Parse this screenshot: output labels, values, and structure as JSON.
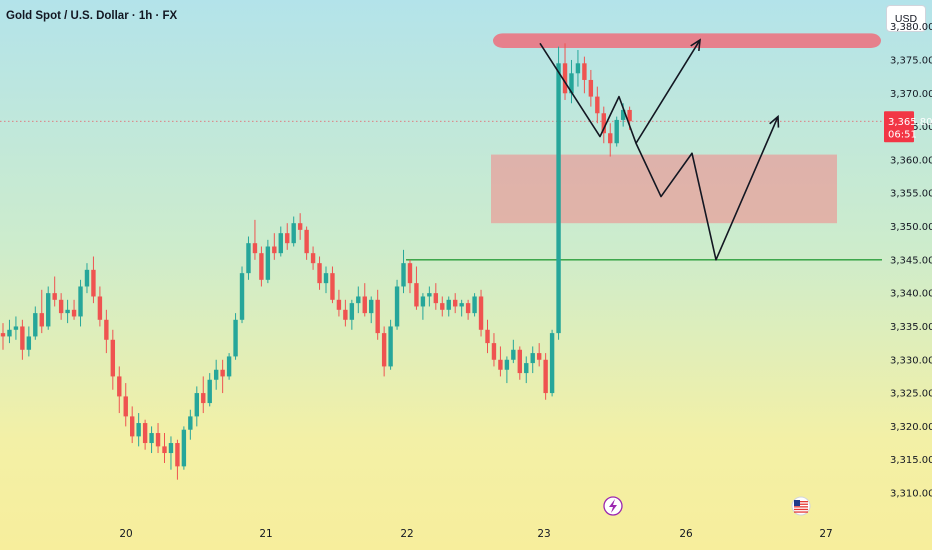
{
  "header": {
    "title": "Gold Spot / U.S. Dollar · 1h · FX",
    "currency_label": "USD"
  },
  "colors": {
    "up": "#26a69a",
    "down": "#ef5350",
    "supply_zone": "#e87a87",
    "demand_zone": "#f08e8e",
    "support_line": "#2a9d3a",
    "projection": "#131722",
    "price_badge": "#f23645"
  },
  "icons": [
    "lightning-icon",
    "us-flag-icon"
  ],
  "chart_data": {
    "type": "candlestick",
    "symbol": "Gold Spot / U.S. Dollar",
    "interval": "1h",
    "currency": "USD",
    "y_ticks": [
      "3,310.00",
      "3,315.00",
      "3,320.00",
      "3,325.00",
      "3,330.00",
      "3,335.00",
      "3,340.00",
      "3,345.00",
      "3,350.00",
      "3,355.00",
      "3,360.00",
      "3,365.00",
      "3,370.00",
      "3,375.00",
      "3,380.00"
    ],
    "x_ticks": [
      "20",
      "21",
      "22",
      "23",
      "26",
      "27"
    ],
    "ylim": [
      3308.5,
      3382.5
    ],
    "current_price": {
      "label": "3,365.80",
      "value": 3365.8,
      "countdown": "06:51"
    },
    "candles": [
      [
        3334.0,
        3335.5,
        3331.5,
        3333.5
      ],
      [
        3333.5,
        3336.0,
        3332.5,
        3334.5
      ],
      [
        3334.5,
        3336.5,
        3333.0,
        3335.0
      ],
      [
        3335.0,
        3336.0,
        3330.0,
        3331.5
      ],
      [
        3331.5,
        3335.0,
        3330.5,
        3333.5
      ],
      [
        3333.5,
        3338.0,
        3333.0,
        3337.0
      ],
      [
        3337.0,
        3340.5,
        3334.0,
        3335.0
      ],
      [
        3335.0,
        3341.0,
        3334.5,
        3340.0
      ],
      [
        3340.0,
        3342.5,
        3338.0,
        3339.0
      ],
      [
        3339.0,
        3340.0,
        3336.0,
        3337.0
      ],
      [
        3337.0,
        3339.0,
        3335.5,
        3337.5
      ],
      [
        3337.5,
        3339.0,
        3336.0,
        3336.5
      ],
      [
        3336.5,
        3342.0,
        3335.0,
        3341.0
      ],
      [
        3341.0,
        3344.5,
        3340.0,
        3343.5
      ],
      [
        3343.5,
        3345.5,
        3338.5,
        3339.5
      ],
      [
        3339.5,
        3341.0,
        3335.0,
        3336.0
      ],
      [
        3336.0,
        3337.5,
        3331.0,
        3333.0
      ],
      [
        3333.0,
        3334.5,
        3325.5,
        3327.5
      ],
      [
        3327.5,
        3329.0,
        3322.0,
        3324.5
      ],
      [
        3324.5,
        3326.5,
        3320.0,
        3321.5
      ],
      [
        3321.5,
        3323.0,
        3317.5,
        3318.5
      ],
      [
        3318.5,
        3322.0,
        3317.0,
        3320.5
      ],
      [
        3320.5,
        3321.0,
        3316.5,
        3317.5
      ],
      [
        3317.5,
        3320.0,
        3316.0,
        3319.0
      ],
      [
        3319.0,
        3320.5,
        3316.0,
        3317.0
      ],
      [
        3317.0,
        3319.0,
        3314.5,
        3316.0
      ],
      [
        3316.0,
        3318.5,
        3313.5,
        3317.5
      ],
      [
        3317.5,
        3318.0,
        3312.0,
        3314.0
      ],
      [
        3314.0,
        3320.0,
        3313.5,
        3319.5
      ],
      [
        3319.5,
        3322.5,
        3318.0,
        3321.5
      ],
      [
        3321.5,
        3326.0,
        3320.0,
        3325.0
      ],
      [
        3325.0,
        3327.5,
        3322.0,
        3323.5
      ],
      [
        3323.5,
        3328.0,
        3323.0,
        3327.0
      ],
      [
        3327.0,
        3330.0,
        3325.5,
        3328.5
      ],
      [
        3328.5,
        3330.0,
        3325.0,
        3327.5
      ],
      [
        3327.5,
        3331.0,
        3327.0,
        3330.5
      ],
      [
        3330.5,
        3337.0,
        3330.0,
        3336.0
      ],
      [
        3336.0,
        3344.0,
        3335.5,
        3343.0
      ],
      [
        3343.0,
        3348.5,
        3342.0,
        3347.5
      ],
      [
        3347.5,
        3351.0,
        3345.0,
        3346.0
      ],
      [
        3346.0,
        3347.0,
        3341.0,
        3342.0
      ],
      [
        3342.0,
        3348.0,
        3341.5,
        3347.0
      ],
      [
        3347.0,
        3349.0,
        3345.0,
        3346.0
      ],
      [
        3346.0,
        3350.0,
        3345.5,
        3349.0
      ],
      [
        3349.0,
        3350.5,
        3346.5,
        3347.5
      ],
      [
        3347.5,
        3351.5,
        3347.0,
        3350.5
      ],
      [
        3350.5,
        3352.0,
        3348.0,
        3349.5
      ],
      [
        3349.5,
        3350.0,
        3345.0,
        3346.0
      ],
      [
        3346.0,
        3347.0,
        3343.5,
        3344.5
      ],
      [
        3344.5,
        3345.5,
        3340.5,
        3341.5
      ],
      [
        3341.5,
        3344.0,
        3340.0,
        3343.0
      ],
      [
        3343.0,
        3344.0,
        3338.5,
        3339.0
      ],
      [
        3339.0,
        3340.5,
        3336.5,
        3337.5
      ],
      [
        3337.5,
        3339.0,
        3335.0,
        3336.0
      ],
      [
        3336.0,
        3339.0,
        3334.5,
        3338.5
      ],
      [
        3338.5,
        3341.0,
        3337.0,
        3339.5
      ],
      [
        3339.5,
        3341.5,
        3336.5,
        3337.0
      ],
      [
        3337.0,
        3339.5,
        3335.5,
        3339.0
      ],
      [
        3339.0,
        3340.5,
        3333.0,
        3334.0
      ],
      [
        3334.0,
        3335.0,
        3327.5,
        3329.0
      ],
      [
        3329.0,
        3336.0,
        3328.5,
        3335.0
      ],
      [
        3335.0,
        3342.0,
        3334.5,
        3341.0
      ],
      [
        3341.0,
        3346.5,
        3340.0,
        3344.5
      ],
      [
        3344.5,
        3345.0,
        3340.0,
        3341.5
      ],
      [
        3341.5,
        3344.0,
        3337.5,
        3338.0
      ],
      [
        3338.0,
        3340.0,
        3336.0,
        3339.5
      ],
      [
        3339.5,
        3341.0,
        3338.0,
        3340.0
      ],
      [
        3340.0,
        3341.5,
        3337.5,
        3338.5
      ],
      [
        3338.5,
        3339.5,
        3336.5,
        3337.5
      ],
      [
        3337.5,
        3339.5,
        3336.5,
        3339.0
      ],
      [
        3339.0,
        3340.0,
        3337.0,
        3338.0
      ],
      [
        3338.0,
        3339.0,
        3336.5,
        3338.5
      ],
      [
        3338.5,
        3339.0,
        3336.0,
        3337.0
      ],
      [
        3337.0,
        3340.0,
        3336.5,
        3339.5
      ],
      [
        3339.5,
        3340.5,
        3333.5,
        3334.5
      ],
      [
        3334.5,
        3336.0,
        3331.0,
        3332.5
      ],
      [
        3332.5,
        3334.0,
        3329.0,
        3330.0
      ],
      [
        3330.0,
        3332.0,
        3327.5,
        3328.5
      ],
      [
        3328.5,
        3330.5,
        3326.5,
        3330.0
      ],
      [
        3330.0,
        3333.0,
        3329.5,
        3331.5
      ],
      [
        3331.5,
        3332.0,
        3327.0,
        3328.0
      ],
      [
        3328.0,
        3330.5,
        3326.5,
        3329.5
      ],
      [
        3329.5,
        3332.0,
        3328.0,
        3331.0
      ],
      [
        3331.0,
        3332.5,
        3329.0,
        3330.0
      ],
      [
        3330.0,
        3331.0,
        3324.0,
        3325.0
      ],
      [
        3325.0,
        3334.5,
        3324.5,
        3334.0
      ],
      [
        3334.0,
        3377.0,
        3333.0,
        3374.5
      ],
      [
        3374.5,
        3377.5,
        3369.0,
        3370.0
      ],
      [
        3370.0,
        3375.0,
        3368.5,
        3373.0
      ],
      [
        3373.0,
        3376.5,
        3371.0,
        3374.5
      ],
      [
        3374.5,
        3375.5,
        3370.0,
        3372.0
      ],
      [
        3372.0,
        3373.5,
        3368.0,
        3369.5
      ],
      [
        3369.5,
        3371.0,
        3365.5,
        3367.0
      ],
      [
        3367.0,
        3368.0,
        3362.5,
        3364.0
      ],
      [
        3364.0,
        3365.5,
        3360.5,
        3362.5
      ],
      [
        3362.5,
        3366.5,
        3362.0,
        3366.0
      ],
      [
        3366.0,
        3368.5,
        3365.0,
        3367.5
      ],
      [
        3367.5,
        3368.0,
        3364.5,
        3365.8
      ]
    ],
    "zones": [
      {
        "name": "resistance-zone",
        "range": [
          3376.8,
          3379.0
        ]
      },
      {
        "name": "demand-zone",
        "range": [
          3350.5,
          3360.8
        ]
      }
    ],
    "support_line": 3345.0,
    "projection_paths": [
      [
        [
          3377.5,
          540
        ],
        [
          3363.5,
          600
        ],
        [
          3369.5,
          619
        ],
        [
          3362.5,
          636
        ],
        [
          3378.0,
          700
        ]
      ],
      [
        [
          3362.5,
          636
        ],
        [
          3354.5,
          661
        ],
        [
          3361.0,
          692
        ],
        [
          3345.0,
          716
        ],
        [
          3366.5,
          778
        ]
      ]
    ]
  }
}
